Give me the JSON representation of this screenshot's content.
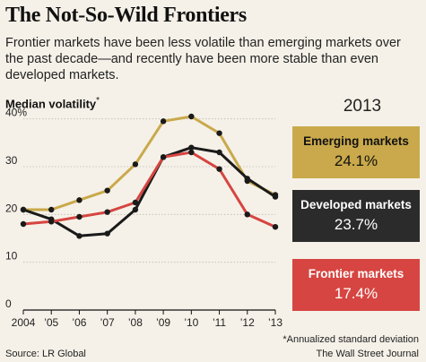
{
  "header": {
    "title": "The Not-So-Wild Frontiers",
    "subtitle": "Frontier markets have been less volatile than emerging markets over the past decade—and recently have been more stable than even developed markets.",
    "ylabel": "Median volatility",
    "ylabel_marker": "*"
  },
  "chart_data": {
    "type": "line",
    "x": [
      2004,
      2005,
      2006,
      2007,
      2008,
      2009,
      2010,
      2011,
      2012,
      2013
    ],
    "xtick_labels": [
      "2004",
      "’05",
      "’06",
      "’07",
      "’08",
      "’09",
      "’10",
      "’11",
      "’12",
      "’13"
    ],
    "ytick_labels": [
      "0",
      "10",
      "20",
      "30",
      "40%"
    ],
    "yticks": [
      0,
      10,
      20,
      30,
      40
    ],
    "ylim": [
      0,
      42
    ],
    "grid": true,
    "series": [
      {
        "name": "Emerging markets",
        "color": "#c9a94b",
        "values": [
          21.0,
          21.0,
          23.0,
          25.0,
          30.5,
          39.5,
          40.5,
          37.0,
          27.0,
          24.1
        ]
      },
      {
        "name": "Developed markets",
        "color": "#1a1a1a",
        "values": [
          21.0,
          19.0,
          15.5,
          16.0,
          21.0,
          32.0,
          34.0,
          33.0,
          27.5,
          23.7
        ]
      },
      {
        "name": "Frontier markets",
        "color": "#d64541",
        "values": [
          18.0,
          18.5,
          19.5,
          20.5,
          22.5,
          32.0,
          33.0,
          29.5,
          20.0,
          17.4
        ]
      }
    ]
  },
  "panel": {
    "year": "2013",
    "boxes": [
      {
        "name": "Emerging markets",
        "value": "24.1%",
        "color": "#c9a94b"
      },
      {
        "name": "Developed markets",
        "value": "23.7%",
        "color": "#2b2b2b"
      },
      {
        "name": "Frontier markets",
        "value": "17.4%",
        "color": "#d64541"
      }
    ]
  },
  "footer": {
    "source": "Source: LR Global",
    "note": "*Annualized standard deviation",
    "credit": "The Wall Street Journal"
  }
}
